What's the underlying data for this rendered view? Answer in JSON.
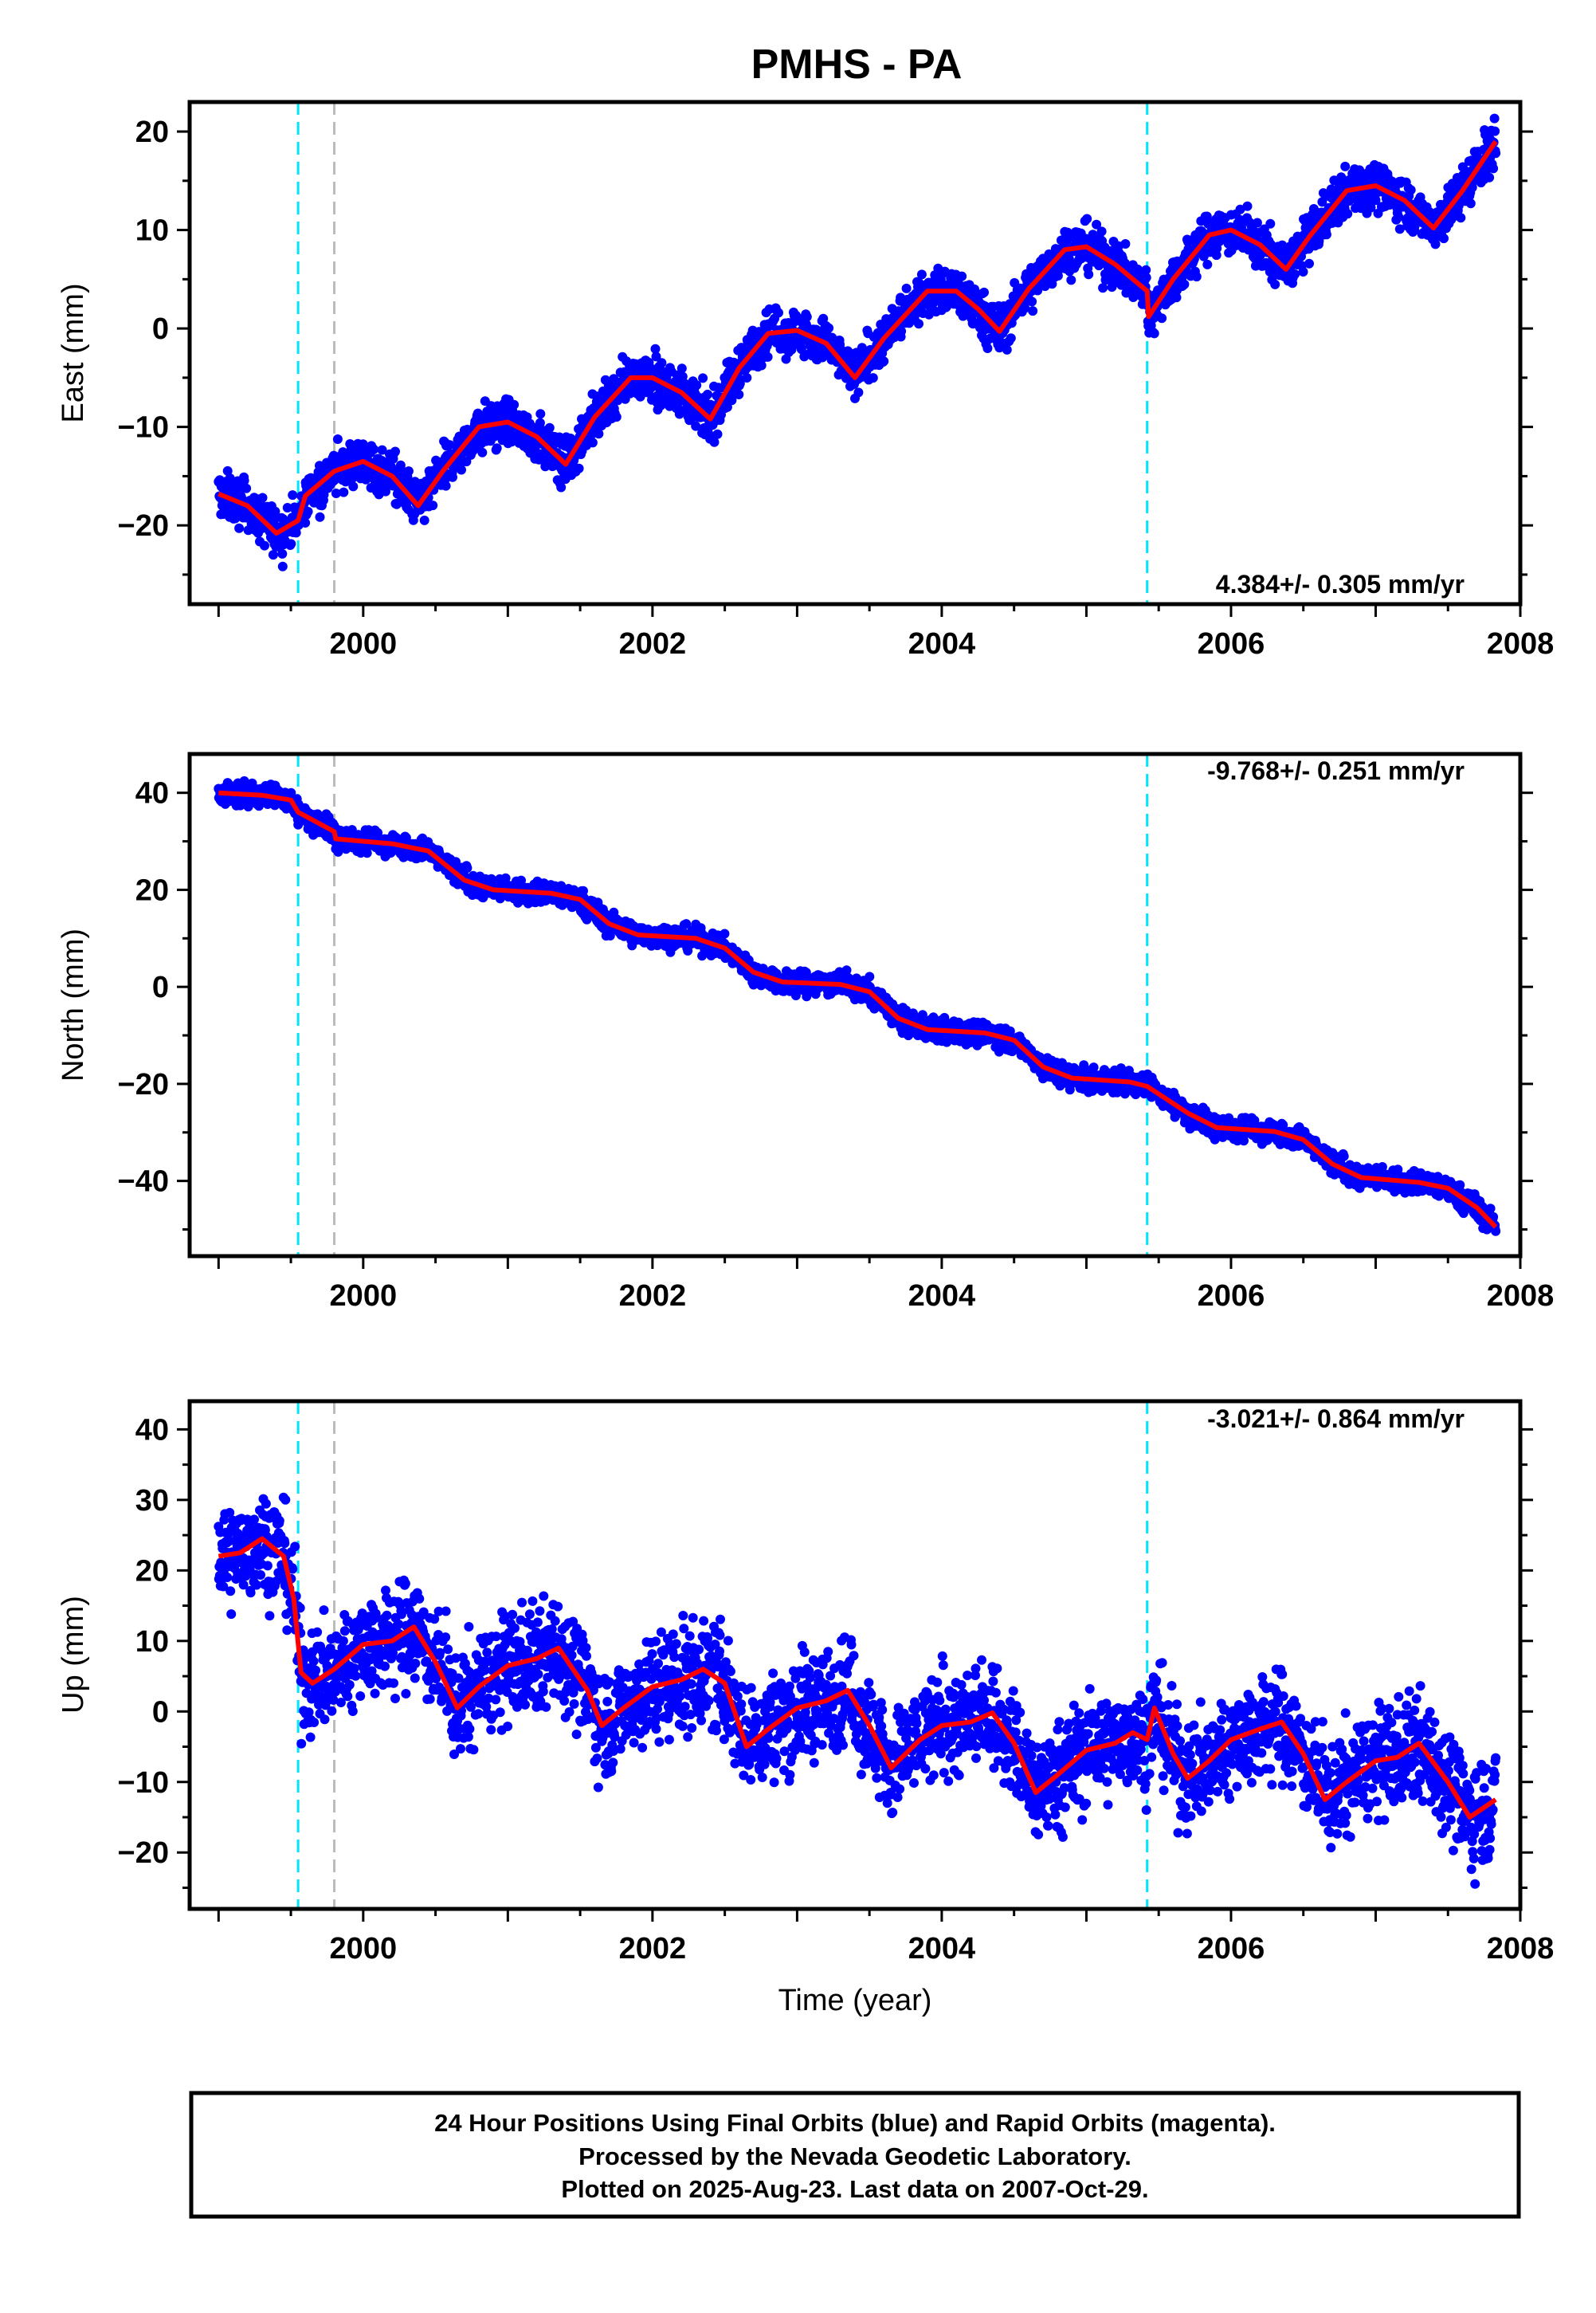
{
  "chart_data": {
    "type": "scatter",
    "title": "PMHS - PA",
    "xlabel": "Time (year)",
    "xlim": [
      1998.8,
      2008.0
    ],
    "xticks": [
      2000,
      2002,
      2004,
      2006,
      2008
    ],
    "series_colors": {
      "final_orbits": "#0000ff",
      "model": "#ff0000"
    },
    "vertical_lines": [
      {
        "kind": "equipment_change",
        "x": 1999.55,
        "color": "#00e5ff"
      },
      {
        "kind": "unknown_event",
        "x": 1999.8,
        "color": "#bbbbbb"
      },
      {
        "kind": "equipment_change",
        "x": 2005.42,
        "color": "#00e5ff"
      }
    ],
    "panels": [
      {
        "id": "east",
        "ylabel": "East (mm)",
        "ylim": [
          -28.0,
          23.0
        ],
        "yticks": [
          -20,
          -10,
          0,
          10,
          20
        ],
        "rate_text": "4.384+/- 0.305 mm/yr",
        "rate_position": "bottom-right",
        "model_curve": [
          [
            1999.0,
            -16.8
          ],
          [
            1999.2,
            -18.0
          ],
          [
            1999.4,
            -20.8
          ],
          [
            1999.55,
            -19.5
          ],
          [
            1999.6,
            -17.0
          ],
          [
            1999.8,
            -14.5
          ],
          [
            2000.0,
            -13.5
          ],
          [
            2000.2,
            -15.0
          ],
          [
            2000.38,
            -18.0
          ],
          [
            2000.55,
            -14.5
          ],
          [
            2000.8,
            -10.0
          ],
          [
            2001.0,
            -9.5
          ],
          [
            2001.2,
            -11.0
          ],
          [
            2001.4,
            -13.8
          ],
          [
            2001.6,
            -9.0
          ],
          [
            2001.85,
            -5.0
          ],
          [
            2002.0,
            -5.0
          ],
          [
            2002.2,
            -6.5
          ],
          [
            2002.4,
            -9.2
          ],
          [
            2002.6,
            -4.0
          ],
          [
            2002.8,
            -0.5
          ],
          [
            2003.0,
            -0.2
          ],
          [
            2003.2,
            -1.5
          ],
          [
            2003.4,
            -5.0
          ],
          [
            2003.6,
            -1.0
          ],
          [
            2003.9,
            3.8
          ],
          [
            2004.1,
            3.8
          ],
          [
            2004.25,
            2.0
          ],
          [
            2004.4,
            -0.3
          ],
          [
            2004.6,
            4.0
          ],
          [
            2004.85,
            8.0
          ],
          [
            2005.0,
            8.3
          ],
          [
            2005.2,
            6.5
          ],
          [
            2005.42,
            3.8
          ],
          [
            2005.43,
            1.2
          ],
          [
            2005.6,
            5.0
          ],
          [
            2005.85,
            9.5
          ],
          [
            2006.0,
            10.0
          ],
          [
            2006.2,
            8.5
          ],
          [
            2006.38,
            6.0
          ],
          [
            2006.55,
            9.5
          ],
          [
            2006.8,
            14.0
          ],
          [
            2007.0,
            14.5
          ],
          [
            2007.2,
            13.0
          ],
          [
            2007.4,
            10.2
          ],
          [
            2007.6,
            14.0
          ],
          [
            2007.83,
            19.0
          ]
        ]
      },
      {
        "id": "north",
        "ylabel": "North (mm)",
        "ylim": [
          -55.5,
          48.0
        ],
        "yticks": [
          -40,
          -20,
          0,
          20,
          40
        ],
        "rate_text": "-9.768+/- 0.251 mm/yr",
        "rate_position": "top-right",
        "model_curve": [
          [
            1999.0,
            40.0
          ],
          [
            1999.3,
            39.5
          ],
          [
            1999.5,
            38.5
          ],
          [
            1999.55,
            36.0
          ],
          [
            1999.8,
            32.0
          ],
          [
            1999.81,
            30.5
          ],
          [
            2000.2,
            29.5
          ],
          [
            2000.45,
            28.0
          ],
          [
            2000.7,
            22.0
          ],
          [
            2000.9,
            20.0
          ],
          [
            2001.3,
            19.3
          ],
          [
            2001.5,
            18.0
          ],
          [
            2001.7,
            13.0
          ],
          [
            2001.9,
            10.7
          ],
          [
            2002.3,
            10.0
          ],
          [
            2002.5,
            8.0
          ],
          [
            2002.7,
            3.0
          ],
          [
            2002.9,
            1.0
          ],
          [
            2003.3,
            0.5
          ],
          [
            2003.5,
            -1.0
          ],
          [
            2003.7,
            -6.5
          ],
          [
            2003.9,
            -8.8
          ],
          [
            2004.3,
            -9.5
          ],
          [
            2004.5,
            -11.0
          ],
          [
            2004.7,
            -16.5
          ],
          [
            2004.9,
            -18.8
          ],
          [
            2005.3,
            -19.6
          ],
          [
            2005.42,
            -20.5
          ],
          [
            2005.7,
            -26.0
          ],
          [
            2005.9,
            -29.0
          ],
          [
            2006.3,
            -29.8
          ],
          [
            2006.5,
            -31.5
          ],
          [
            2006.7,
            -36.5
          ],
          [
            2006.9,
            -39.3
          ],
          [
            2007.3,
            -40.3
          ],
          [
            2007.5,
            -41.5
          ],
          [
            2007.7,
            -45.5
          ],
          [
            2007.83,
            -49.5
          ]
        ]
      },
      {
        "id": "up",
        "ylabel": "Up (mm)",
        "ylim": [
          -28.0,
          44.0
        ],
        "yticks": [
          -20,
          -10,
          0,
          10,
          20,
          30,
          40
        ],
        "rate_text": "-3.021+/- 0.864 mm/yr",
        "rate_position": "top-right",
        "model_curve": [
          [
            1999.0,
            22.0
          ],
          [
            1999.15,
            22.5
          ],
          [
            1999.3,
            24.5
          ],
          [
            1999.45,
            22.0
          ],
          [
            1999.52,
            16.0
          ],
          [
            1999.57,
            5.5
          ],
          [
            1999.65,
            4.0
          ],
          [
            1999.8,
            6.0
          ],
          [
            2000.0,
            9.5
          ],
          [
            2000.2,
            10.0
          ],
          [
            2000.35,
            12.0
          ],
          [
            2000.5,
            7.0
          ],
          [
            2000.65,
            0.5
          ],
          [
            2000.8,
            3.5
          ],
          [
            2001.0,
            6.5
          ],
          [
            2001.2,
            7.5
          ],
          [
            2001.35,
            9.0
          ],
          [
            2001.55,
            3.0
          ],
          [
            2001.65,
            -2.0
          ],
          [
            2001.8,
            0.5
          ],
          [
            2002.0,
            3.5
          ],
          [
            2002.2,
            4.5
          ],
          [
            2002.35,
            6.0
          ],
          [
            2002.5,
            4.0
          ],
          [
            2002.65,
            -5.0
          ],
          [
            2002.8,
            -2.5
          ],
          [
            2003.0,
            0.5
          ],
          [
            2003.2,
            1.5
          ],
          [
            2003.35,
            3.0
          ],
          [
            2003.5,
            -2.0
          ],
          [
            2003.65,
            -8.0
          ],
          [
            2003.85,
            -4.0
          ],
          [
            2004.0,
            -2.0
          ],
          [
            2004.2,
            -1.5
          ],
          [
            2004.35,
            -0.2
          ],
          [
            2004.5,
            -4.5
          ],
          [
            2004.65,
            -11.5
          ],
          [
            2004.8,
            -9.0
          ],
          [
            2005.0,
            -5.5
          ],
          [
            2005.2,
            -4.5
          ],
          [
            2005.32,
            -3.0
          ],
          [
            2005.42,
            -4.0
          ],
          [
            2005.47,
            0.5
          ],
          [
            2005.6,
            -6.0
          ],
          [
            2005.7,
            -9.5
          ],
          [
            2005.85,
            -7.0
          ],
          [
            2006.0,
            -4.0
          ],
          [
            2006.2,
            -2.5
          ],
          [
            2006.35,
            -1.5
          ],
          [
            2006.5,
            -6.0
          ],
          [
            2006.65,
            -12.5
          ],
          [
            2006.8,
            -10.0
          ],
          [
            2007.0,
            -7.0
          ],
          [
            2007.15,
            -6.5
          ],
          [
            2007.3,
            -4.5
          ],
          [
            2007.5,
            -10.0
          ],
          [
            2007.65,
            -15.0
          ],
          [
            2007.83,
            -12.5
          ]
        ]
      }
    ]
  },
  "footer": {
    "line1": "24 Hour Positions Using Final Orbits (blue) and Rapid Orbits (magenta).",
    "line2": "Processed by the Nevada Geodetic Laboratory.",
    "line3": "Plotted on 2025-Aug-23. Last data on 2007-Oct-29."
  }
}
